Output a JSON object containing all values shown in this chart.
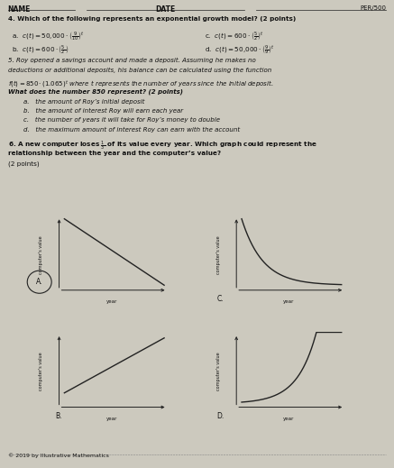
{
  "background_color": "#ccc9be",
  "text_color": "#111111",
  "line_color": "#222222",
  "graph_bg": "#ccc9be",
  "header_name": "NAME",
  "header_date": "DATE",
  "header_per": "PER/500",
  "copyright": "© 2019 by Illustrative Mathematics"
}
